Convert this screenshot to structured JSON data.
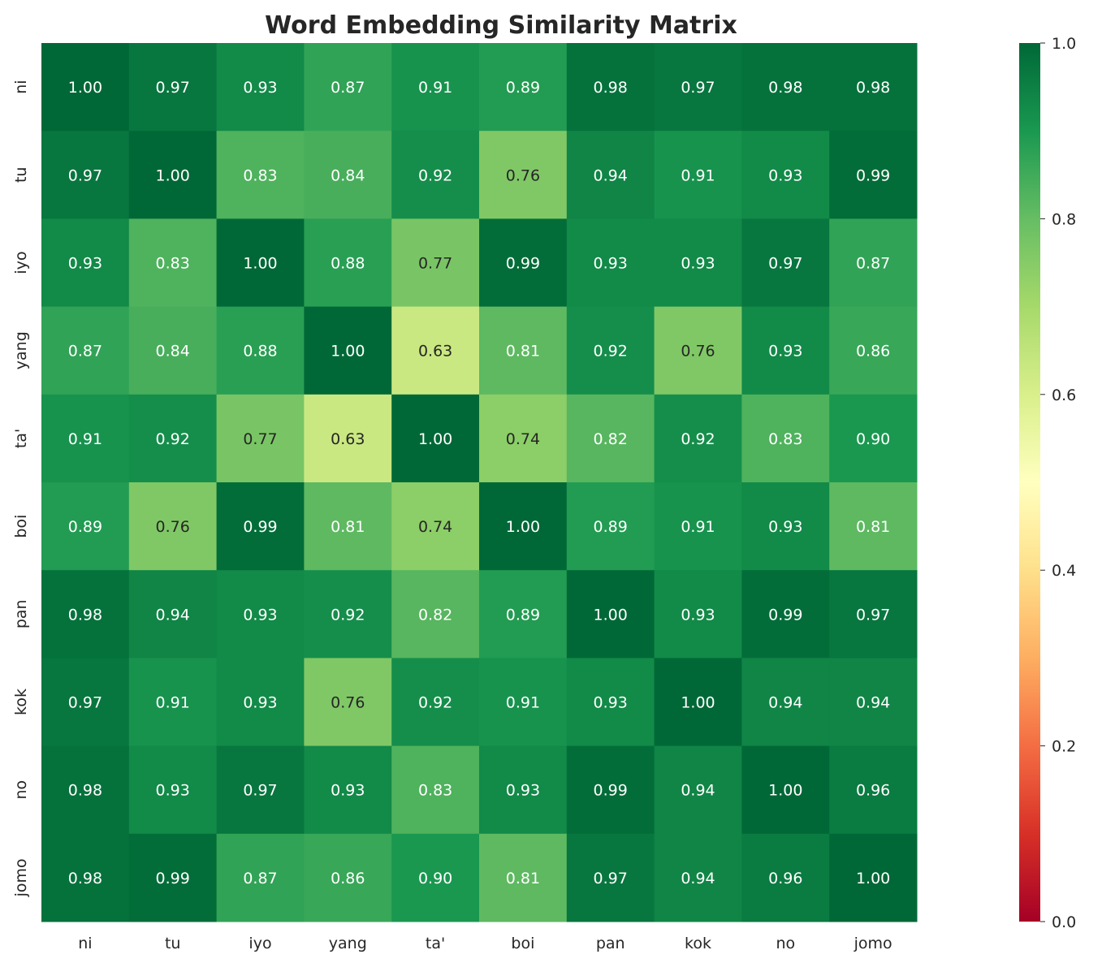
{
  "chart_data": {
    "type": "heatmap",
    "title": "Word Embedding Similarity Matrix",
    "xlabel": "",
    "ylabel": "",
    "x_labels": [
      "ni",
      "tu",
      "iyo",
      "yang",
      "ta'",
      "boi",
      "pan",
      "kok",
      "no",
      "jomo"
    ],
    "y_labels": [
      "ni",
      "tu",
      "iyo",
      "yang",
      "ta'",
      "boi",
      "pan",
      "kok",
      "no",
      "jomo"
    ],
    "values": [
      [
        1.0,
        0.97,
        0.93,
        0.87,
        0.91,
        0.89,
        0.98,
        0.97,
        0.98,
        0.98
      ],
      [
        0.97,
        1.0,
        0.83,
        0.84,
        0.92,
        0.76,
        0.94,
        0.91,
        0.93,
        0.99
      ],
      [
        0.93,
        0.83,
        1.0,
        0.88,
        0.77,
        0.99,
        0.93,
        0.93,
        0.97,
        0.87
      ],
      [
        0.87,
        0.84,
        0.88,
        1.0,
        0.63,
        0.81,
        0.92,
        0.76,
        0.93,
        0.86
      ],
      [
        0.91,
        0.92,
        0.77,
        0.63,
        1.0,
        0.74,
        0.82,
        0.92,
        0.83,
        0.9
      ],
      [
        0.89,
        0.76,
        0.99,
        0.81,
        0.74,
        1.0,
        0.89,
        0.91,
        0.93,
        0.81
      ],
      [
        0.98,
        0.94,
        0.93,
        0.92,
        0.82,
        0.89,
        1.0,
        0.93,
        0.99,
        0.97
      ],
      [
        0.97,
        0.91,
        0.93,
        0.76,
        0.92,
        0.91,
        0.93,
        1.0,
        0.94,
        0.94
      ],
      [
        0.98,
        0.93,
        0.97,
        0.93,
        0.83,
        0.93,
        0.99,
        0.94,
        1.0,
        0.96
      ],
      [
        0.98,
        0.99,
        0.87,
        0.86,
        0.9,
        0.81,
        0.97,
        0.94,
        0.96,
        1.0
      ]
    ],
    "colormap": "RdYlGn",
    "vmin": 0.0,
    "vmax": 1.0,
    "colorbar_ticks": [
      "0.0",
      "0.2",
      "0.4",
      "0.6",
      "0.8",
      "1.0"
    ],
    "annotation_format": "0.00"
  }
}
